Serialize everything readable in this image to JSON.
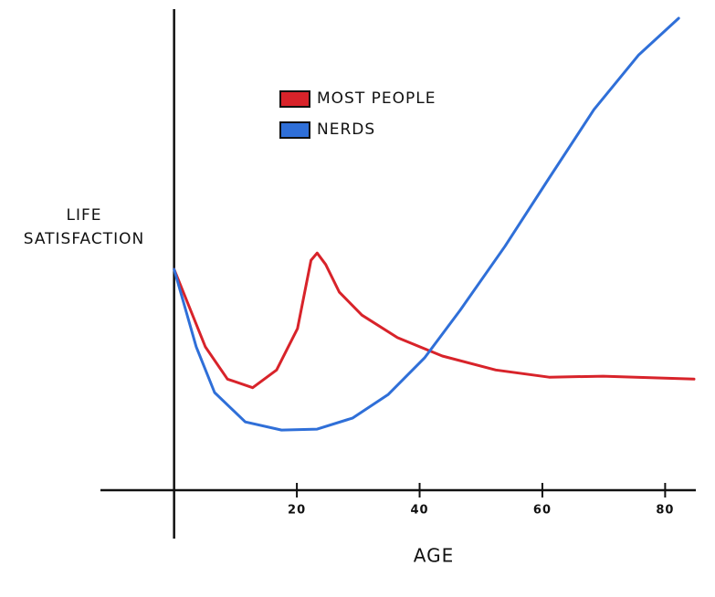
{
  "chart_data": {
    "type": "line",
    "y_label": [
      "LIFE",
      "SATISFACTION"
    ],
    "x_label": "AGE",
    "xlim": [
      -12,
      85
    ],
    "xticks": [
      20,
      40,
      60,
      80
    ],
    "ylim": [
      0,
      100
    ],
    "legend": "top-left",
    "series": [
      {
        "name": "MOST PEOPLE",
        "color": "#d8232a",
        "x": [
          0,
          5.1,
          8.7,
          12.8,
          16.7,
          20.1,
          22.3,
          23.3,
          24.7,
          26.9,
          30.6,
          36.4,
          43.7,
          52.4,
          61.1,
          69.9,
          84.7
        ],
        "values": [
          45.9,
          29.8,
          23.1,
          21.3,
          25.0,
          33.6,
          47.8,
          49.3,
          46.9,
          41.2,
          36.4,
          31.7,
          27.9,
          25.0,
          23.5,
          23.7,
          23.1
        ]
      },
      {
        "name": "NERDS",
        "color": "#2f6fd8",
        "x": [
          0,
          3.6,
          6.6,
          11.6,
          17.5,
          23.3,
          29.1,
          34.9,
          40.8,
          46.6,
          53.9,
          61.1,
          68.4,
          75.7,
          82.2
        ],
        "values": [
          45.9,
          29.8,
          20.3,
          14.2,
          12.5,
          12.7,
          15.0,
          19.9,
          27.5,
          37.4,
          50.7,
          64.9,
          79.1,
          90.5,
          98.1
        ]
      }
    ]
  }
}
